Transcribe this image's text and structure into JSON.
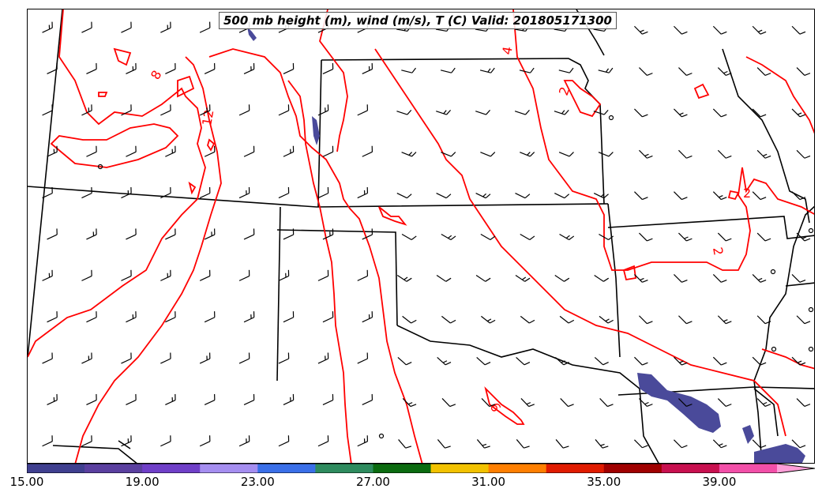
{
  "title": "500 mb height (m), wind (m/s), T (C) Valid: 201805171300",
  "contour_labels": [
    "8",
    "12",
    "4",
    "2",
    "2",
    "2",
    "6"
  ],
  "colors": {
    "temperature_contour": "#ff0000",
    "borders": "#000000",
    "wind_barb": "#000000",
    "wind_shading": "#4a4a9a"
  },
  "colorbar": {
    "tick_labels": [
      "15.00",
      "19.00",
      "23.00",
      "27.00",
      "31.00",
      "35.00",
      "39.00"
    ],
    "colors": [
      "#3f3f8f",
      "#5a3f9f",
      "#6f3fc8",
      "#a58ef0",
      "#3a6fe8",
      "#2e8b5e",
      "#0b6b10",
      "#f2c200",
      "#ff7f00",
      "#e01b00",
      "#a00000",
      "#c8104f",
      "#f24fa8",
      "#ff9ed8"
    ]
  }
}
